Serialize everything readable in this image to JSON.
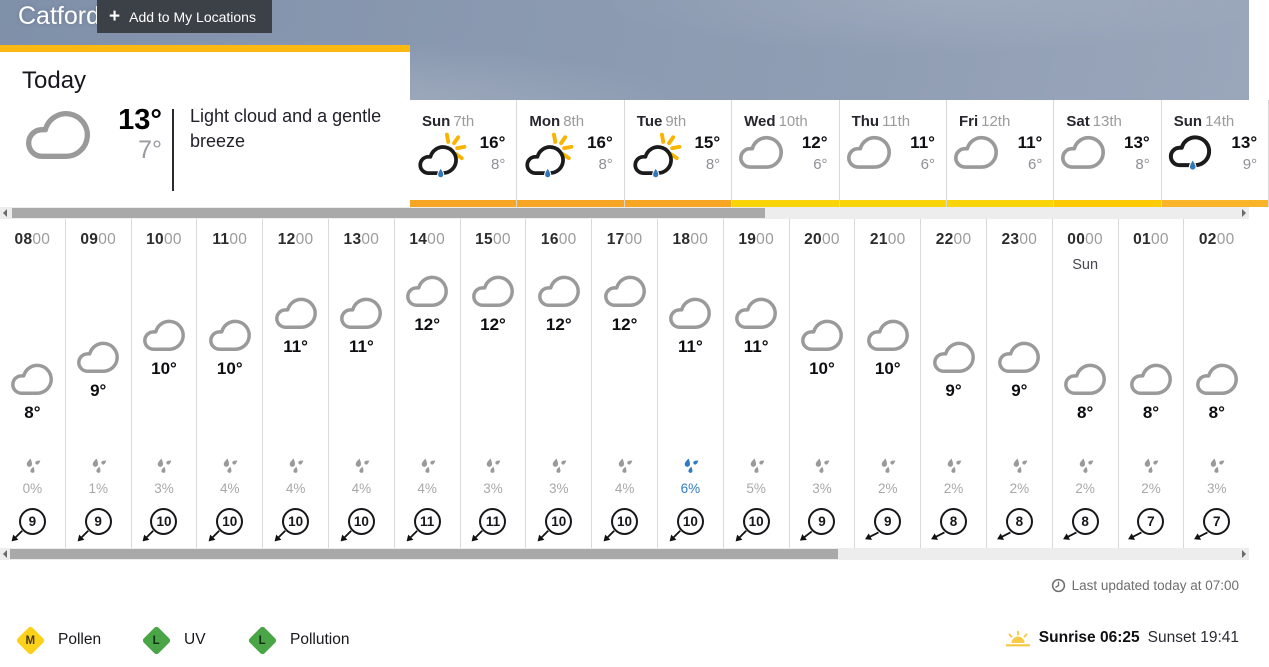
{
  "header": {
    "location": "Catford",
    "add_icon": "+",
    "add_button_label": "Add to My Locations"
  },
  "today": {
    "title": "Today",
    "high": "13°",
    "low": "7°",
    "summary": "Light cloud and a gentle breeze",
    "icon": "light-cloud"
  },
  "day_tabs": [
    {
      "day": "Sun",
      "date": "7th",
      "high": "16°",
      "low": "8°",
      "icon": "sunny-shower",
      "accent": "#f6a623"
    },
    {
      "day": "Mon",
      "date": "8th",
      "high": "16°",
      "low": "8°",
      "icon": "sunny-shower",
      "accent": "#f6a623"
    },
    {
      "day": "Tue",
      "date": "9th",
      "high": "15°",
      "low": "8°",
      "icon": "sunny-shower",
      "accent": "#f6a623"
    },
    {
      "day": "Wed",
      "date": "10th",
      "high": "12°",
      "low": "6°",
      "icon": "light-cloud",
      "accent": "#f8d408"
    },
    {
      "day": "Thu",
      "date": "11th",
      "high": "11°",
      "low": "6°",
      "icon": "light-cloud",
      "accent": "#f8d408"
    },
    {
      "day": "Fri",
      "date": "12th",
      "high": "11°",
      "low": "6°",
      "icon": "light-cloud",
      "accent": "#f8d408"
    },
    {
      "day": "Sat",
      "date": "13th",
      "high": "13°",
      "low": "8°",
      "icon": "light-cloud",
      "accent": "#fccb05"
    },
    {
      "day": "Sun",
      "date": "14th",
      "high": "13°",
      "low": "9°",
      "icon": "rain-shower",
      "accent": "#f9b42a"
    }
  ],
  "hourly": {
    "hours": [
      {
        "time": "0800",
        "time_bold": "08",
        "time_rest": "00",
        "temp_c": 8,
        "temp": "8°",
        "precip": "0%",
        "alert": false,
        "wind": "9",
        "dir": 225,
        "icon": "light-cloud"
      },
      {
        "time": "0900",
        "time_bold": "09",
        "time_rest": "00",
        "temp_c": 9,
        "temp": "9°",
        "precip": "1%",
        "alert": false,
        "wind": "9",
        "dir": 225,
        "icon": "light-cloud"
      },
      {
        "time": "1000",
        "time_bold": "10",
        "time_rest": "00",
        "temp_c": 10,
        "temp": "10°",
        "precip": "3%",
        "alert": false,
        "wind": "10",
        "dir": 225,
        "icon": "light-cloud"
      },
      {
        "time": "1100",
        "time_bold": "11",
        "time_rest": "00",
        "temp_c": 10,
        "temp": "10°",
        "precip": "4%",
        "alert": false,
        "wind": "10",
        "dir": 225,
        "icon": "light-cloud"
      },
      {
        "time": "1200",
        "time_bold": "12",
        "time_rest": "00",
        "temp_c": 11,
        "temp": "11°",
        "precip": "4%",
        "alert": false,
        "wind": "10",
        "dir": 225,
        "icon": "light-cloud"
      },
      {
        "time": "1300",
        "time_bold": "13",
        "time_rest": "00",
        "temp_c": 11,
        "temp": "11°",
        "precip": "4%",
        "alert": false,
        "wind": "10",
        "dir": 225,
        "icon": "light-cloud"
      },
      {
        "time": "1400",
        "time_bold": "14",
        "time_rest": "00",
        "temp_c": 12,
        "temp": "12°",
        "precip": "4%",
        "alert": false,
        "wind": "11",
        "dir": 225,
        "icon": "light-cloud"
      },
      {
        "time": "1500",
        "time_bold": "15",
        "time_rest": "00",
        "temp_c": 12,
        "temp": "12°",
        "precip": "3%",
        "alert": false,
        "wind": "11",
        "dir": 225,
        "icon": "light-cloud"
      },
      {
        "time": "1600",
        "time_bold": "16",
        "time_rest": "00",
        "temp_c": 12,
        "temp": "12°",
        "precip": "3%",
        "alert": false,
        "wind": "10",
        "dir": 225,
        "icon": "light-cloud"
      },
      {
        "time": "1700",
        "time_bold": "17",
        "time_rest": "00",
        "temp_c": 12,
        "temp": "12°",
        "precip": "4%",
        "alert": false,
        "wind": "10",
        "dir": 225,
        "icon": "light-cloud"
      },
      {
        "time": "1800",
        "time_bold": "18",
        "time_rest": "00",
        "temp_c": 11,
        "temp": "11°",
        "precip": "6%",
        "alert": true,
        "wind": "10",
        "dir": 225,
        "icon": "light-cloud"
      },
      {
        "time": "1900",
        "time_bold": "19",
        "time_rest": "00",
        "temp_c": 11,
        "temp": "11°",
        "precip": "5%",
        "alert": false,
        "wind": "10",
        "dir": 225,
        "icon": "light-cloud"
      },
      {
        "time": "2000",
        "time_bold": "20",
        "time_rest": "00",
        "temp_c": 10,
        "temp": "10°",
        "precip": "3%",
        "alert": false,
        "wind": "9",
        "dir": 232,
        "icon": "light-cloud"
      },
      {
        "time": "2100",
        "time_bold": "21",
        "time_rest": "00",
        "temp_c": 10,
        "temp": "10°",
        "precip": "2%",
        "alert": false,
        "wind": "9",
        "dir": 243,
        "icon": "light-cloud"
      },
      {
        "time": "2200",
        "time_bold": "22",
        "time_rest": "00",
        "temp_c": 9,
        "temp": "9°",
        "precip": "2%",
        "alert": false,
        "wind": "8",
        "dir": 243,
        "icon": "light-cloud"
      },
      {
        "time": "2300",
        "time_bold": "23",
        "time_rest": "00",
        "temp_c": 9,
        "temp": "9°",
        "precip": "2%",
        "alert": false,
        "wind": "8",
        "dir": 243,
        "icon": "light-cloud"
      },
      {
        "time": "0000",
        "time_bold": "00",
        "time_rest": "00",
        "sub": "Sun",
        "temp_c": 8,
        "temp": "8°",
        "precip": "2%",
        "alert": false,
        "wind": "8",
        "dir": 243,
        "icon": "light-cloud"
      },
      {
        "time": "0100",
        "time_bold": "01",
        "time_rest": "00",
        "temp_c": 8,
        "temp": "8°",
        "precip": "2%",
        "alert": false,
        "wind": "7",
        "dir": 243,
        "icon": "light-cloud"
      },
      {
        "time": "0200",
        "time_bold": "02",
        "time_rest": "00",
        "temp_c": 8,
        "temp": "8°",
        "precip": "3%",
        "alert": false,
        "wind": "7",
        "dir": 243,
        "icon": "light-cloud"
      }
    ]
  },
  "footer": {
    "last_updated": "Last updated today at 07:00",
    "indices": [
      {
        "label": "Pollen",
        "level": "M",
        "color": "#fcd119"
      },
      {
        "label": "UV",
        "level": "L",
        "color": "#4aa546"
      },
      {
        "label": "Pollution",
        "level": "L",
        "color": "#4aa546"
      }
    ],
    "sunrise_label": "Sunrise",
    "sunrise_time": "06:25",
    "sunset_label": "Sunset",
    "sunset_time": "19:41"
  },
  "colors": {
    "today_accent": "#fcb813",
    "precip_alert": "#2f7cc3",
    "precip_normal": "#9a9a9a",
    "cloud_gray": "#9a9a9a",
    "cloud_dark": "#1b1b1b",
    "drop_blue": "#3278b8",
    "sun_yellow": "#f9b400"
  }
}
